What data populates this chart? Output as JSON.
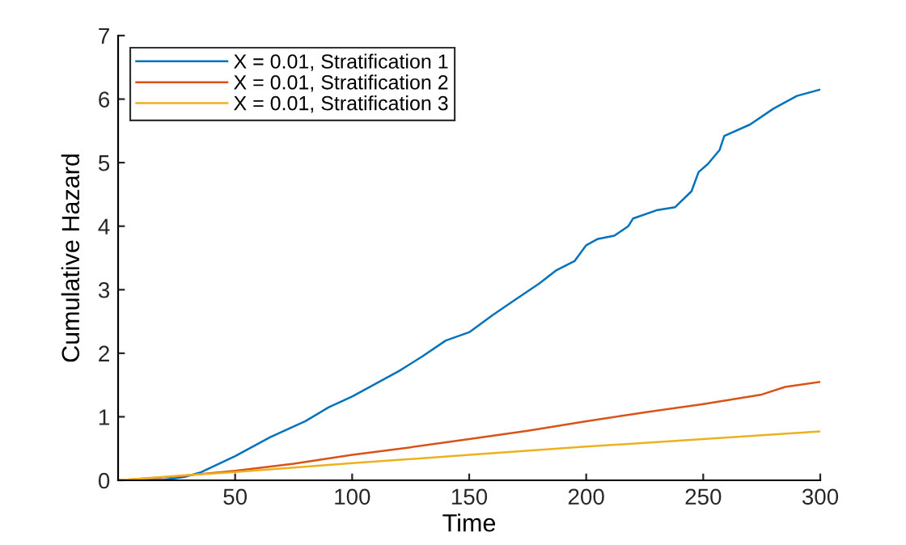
{
  "chart_data": {
    "type": "line",
    "xlabel": "Time",
    "ylabel": "Cumulative Hazard",
    "xlim": [
      0,
      300
    ],
    "xticks": [
      50,
      100,
      150,
      200,
      250,
      300
    ],
    "ylim": [
      0,
      7
    ],
    "yticks": [
      0,
      1,
      2,
      3,
      4,
      5,
      6,
      7
    ],
    "grid": false,
    "legend": "top left",
    "line_style": "solid",
    "marker": "none",
    "series": [
      {
        "name": "X = 0.01, Stratification 1",
        "color": "#0072bd",
        "x": [
          0,
          20,
          28,
          35,
          50,
          65,
          80,
          90,
          100,
          110,
          120,
          130,
          140,
          150,
          160,
          170,
          180,
          187,
          195,
          200,
          205,
          212,
          218,
          220,
          230,
          238,
          245,
          248,
          252,
          257,
          259,
          270,
          280,
          290,
          300
        ],
        "values": [
          0,
          0.01,
          0.05,
          0.12,
          0.38,
          0.68,
          0.93,
          1.15,
          1.32,
          1.52,
          1.72,
          1.95,
          2.2,
          2.33,
          2.6,
          2.85,
          3.1,
          3.3,
          3.45,
          3.7,
          3.8,
          3.85,
          4.0,
          4.12,
          4.25,
          4.3,
          4.55,
          4.85,
          4.98,
          5.2,
          5.42,
          5.6,
          5.85,
          6.05,
          6.15
        ]
      },
      {
        "name": "X = 0.01, Stratification 2",
        "color": "#d95319",
        "x": [
          0,
          25,
          50,
          75,
          100,
          125,
          150,
          175,
          200,
          225,
          250,
          275,
          285,
          300
        ],
        "values": [
          0,
          0.06,
          0.15,
          0.26,
          0.4,
          0.52,
          0.65,
          0.78,
          0.93,
          1.07,
          1.2,
          1.35,
          1.47,
          1.55
        ]
      },
      {
        "name": "X = 0.01, Stratification 3",
        "color": "#edb120",
        "x": [
          0,
          25,
          50,
          100,
          150,
          200,
          250,
          300
        ],
        "values": [
          0,
          0.07,
          0.13,
          0.27,
          0.4,
          0.53,
          0.65,
          0.77
        ]
      }
    ]
  }
}
